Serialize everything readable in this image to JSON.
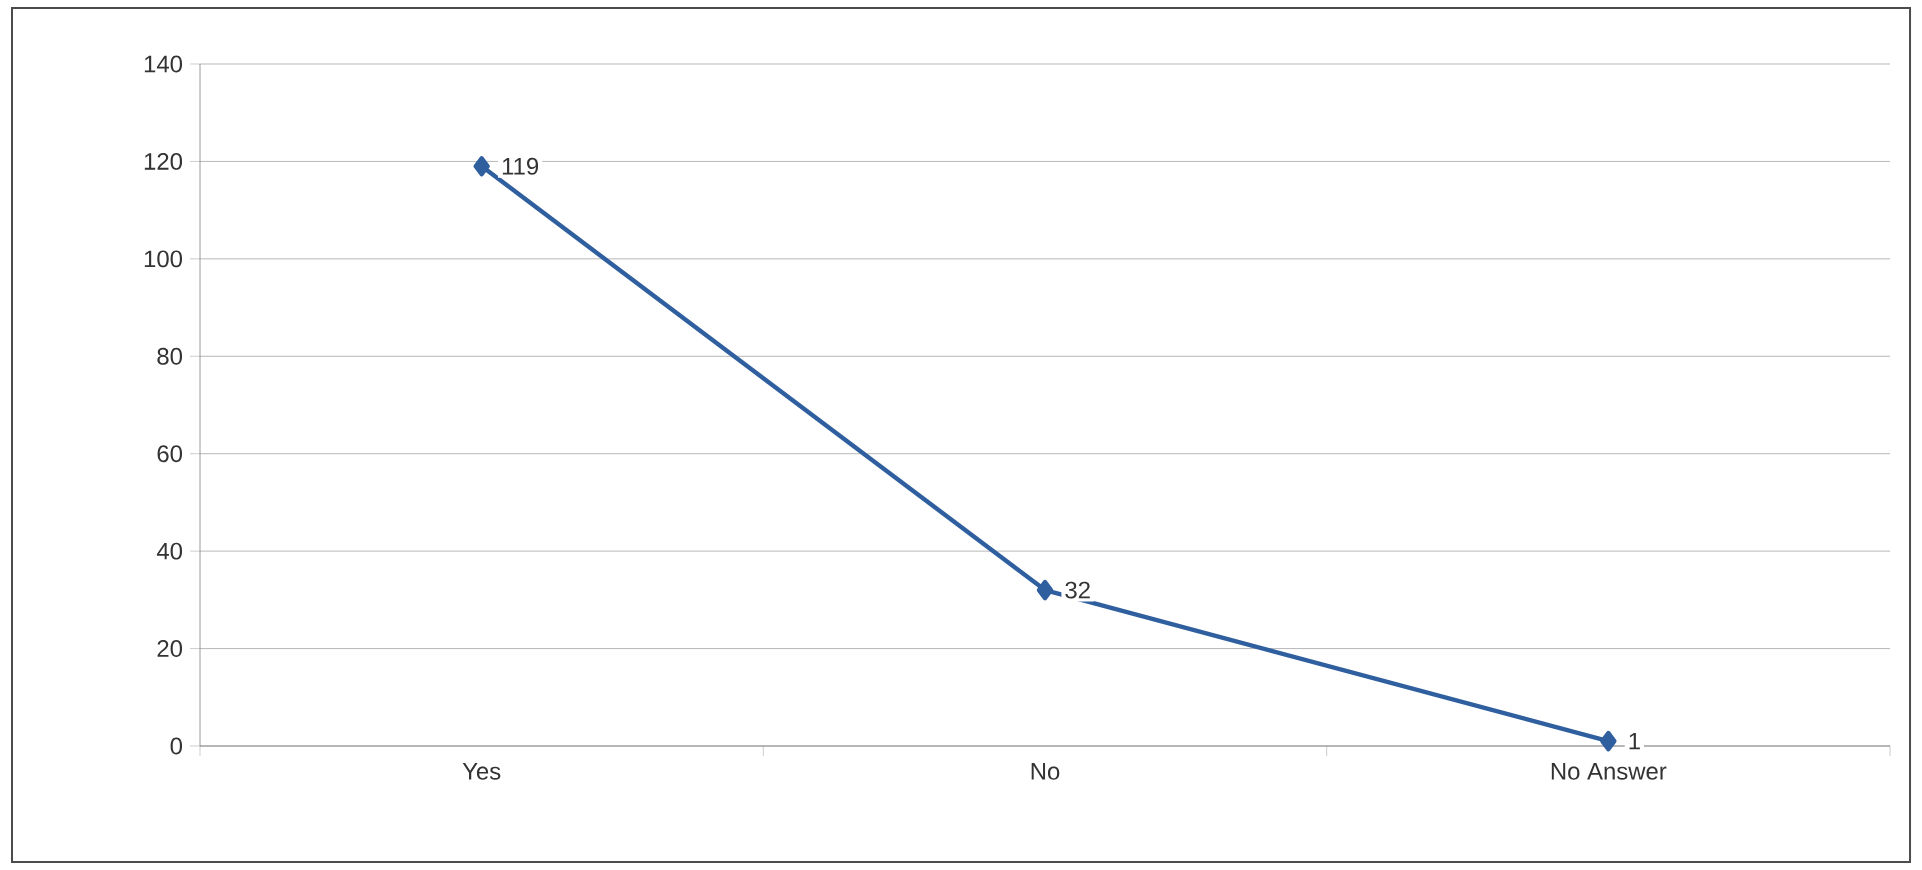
{
  "chart_data": {
    "type": "line",
    "categories": [
      "Yes",
      "No",
      "No Answer"
    ],
    "values": [
      119,
      32,
      1
    ],
    "color": "#2f5f9e",
    "ylim": [
      0,
      140
    ],
    "yticks": [
      0,
      20,
      40,
      60,
      80,
      100,
      120,
      140
    ],
    "grid": "y",
    "marker": "diamond",
    "line_style": "solid",
    "data_labels": true
  }
}
